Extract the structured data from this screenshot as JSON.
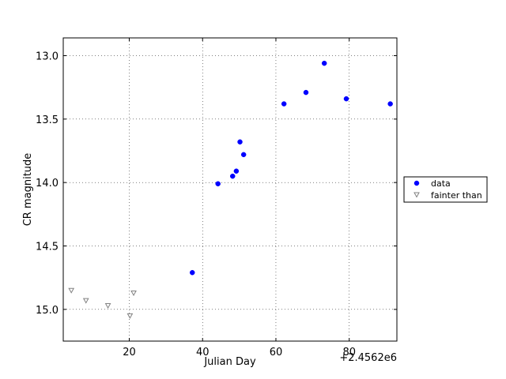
{
  "chart_data": {
    "type": "scatter",
    "title": "",
    "xlabel": "Julian Day",
    "ylabel": "CR magnitude",
    "x_offset_label": "+2.4562e6",
    "xlim": [
      2,
      93
    ],
    "ylim": [
      15.25,
      12.86
    ],
    "y_inverted": true,
    "x_ticks": [
      20,
      40,
      60,
      80
    ],
    "x_tick_labels": [
      "20",
      "40",
      "60",
      "80"
    ],
    "y_ticks": [
      13.0,
      13.5,
      14.0,
      14.5,
      15.0
    ],
    "y_tick_labels": [
      "13.0",
      "13.5",
      "14.0",
      "14.5",
      "15.0"
    ],
    "grid": true,
    "legend_position": "outside-right",
    "series": [
      {
        "name": "data",
        "marker": "circle",
        "color": "#0000ff",
        "points": [
          {
            "x": 37.2,
            "y": 14.71
          },
          {
            "x": 44.2,
            "y": 14.01
          },
          {
            "x": 48.2,
            "y": 13.95
          },
          {
            "x": 49.2,
            "y": 13.91
          },
          {
            "x": 50.2,
            "y": 13.68
          },
          {
            "x": 51.2,
            "y": 13.78
          },
          {
            "x": 62.2,
            "y": 13.38
          },
          {
            "x": 68.2,
            "y": 13.29
          },
          {
            "x": 73.2,
            "y": 13.06
          },
          {
            "x": 79.2,
            "y": 13.34
          },
          {
            "x": 91.2,
            "y": 13.38
          }
        ]
      },
      {
        "name": "fainter than",
        "marker": "triangle-down",
        "color": "#808080",
        "points": [
          {
            "x": 4.2,
            "y": 14.85
          },
          {
            "x": 8.2,
            "y": 14.93
          },
          {
            "x": 14.2,
            "y": 14.97
          },
          {
            "x": 20.2,
            "y": 15.05
          },
          {
            "x": 21.2,
            "y": 14.87
          }
        ]
      }
    ]
  }
}
